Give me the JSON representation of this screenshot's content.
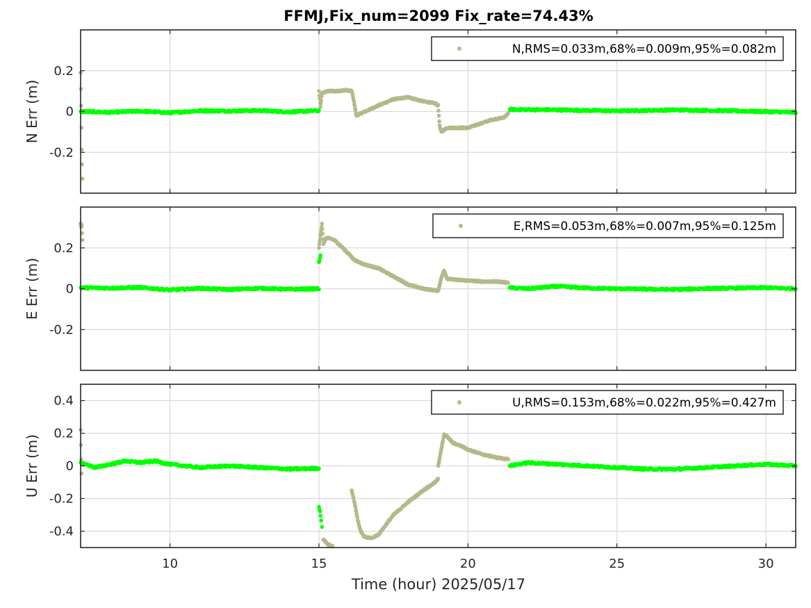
{
  "chart_data": {
    "type": "scatter",
    "title": "FFMJ,Fix_num=2099 Fix_rate=74.43%",
    "xlabel": "Time (hour)  2025/05/17",
    "xlim": [
      7,
      31
    ],
    "xticks": [
      10,
      15,
      20,
      25,
      30
    ],
    "colors": {
      "fixed": "#00ff00",
      "float": "#b5b98a"
    },
    "grid": true,
    "legend_placement": "top-right",
    "panels": [
      {
        "ylabel": "N Err (m)",
        "ylim": [
          -0.4,
          0.4
        ],
        "yticks": [
          -0.2,
          0,
          0.2
        ],
        "ytick_labels": [
          "-0.2",
          "0",
          "0.2"
        ],
        "legend": "N,RMS=0.033m,68%=0.009m,95%=0.082m",
        "fixed_segments": [
          {
            "x": [
              7.0,
              8.0,
              9.0,
              10.0,
              11.0,
              12.0,
              13.0,
              14.0,
              15.0
            ],
            "y": [
              0.0,
              -0.004,
              0.002,
              -0.006,
              0.004,
              0.003,
              0.005,
              -0.002,
              0.005
            ]
          },
          {
            "x": [
              21.4,
              23.0,
              25.0,
              27.0,
              29.0,
              31.0
            ],
            "y": [
              0.01,
              0.008,
              0.003,
              0.008,
              0.003,
              -0.004
            ]
          }
        ],
        "float_segments": [
          {
            "x": [
              7.0,
              7.02,
              7.04,
              7.06
            ],
            "y": [
              0.19,
              0.03,
              -0.19,
              -0.33
            ]
          },
          {
            "x": [
              15.0,
              15.05,
              15.1,
              15.3,
              15.6,
              15.9,
              16.1,
              16.2,
              16.25,
              16.4,
              16.7,
              17.0,
              17.5,
              18.0,
              18.5,
              18.9,
              19.0,
              19.05,
              19.1,
              19.3,
              19.7,
              20.0,
              20.4,
              20.8,
              21.2,
              21.35
            ],
            "y": [
              0.1,
              0.02,
              0.09,
              0.1,
              0.1,
              0.105,
              0.1,
              0.03,
              -0.02,
              -0.01,
              0.01,
              0.03,
              0.06,
              0.07,
              0.05,
              0.04,
              0.03,
              -0.07,
              -0.1,
              -0.08,
              -0.08,
              -0.08,
              -0.06,
              -0.04,
              -0.03,
              -0.01
            ]
          }
        ]
      },
      {
        "ylabel": "E Err (m)",
        "ylim": [
          -0.4,
          0.4
        ],
        "yticks": [
          -0.2,
          0,
          0.2
        ],
        "ytick_labels": [
          "-0.2",
          "0",
          "0.2"
        ],
        "legend": "E,RMS=0.053m,68%=0.007m,95%=0.125m",
        "fixed_segments": [
          {
            "x": [
              7.0,
              8.0,
              9.0,
              10.0,
              11.0,
              12.0,
              13.0,
              14.0,
              15.0
            ],
            "y": [
              0.005,
              0.003,
              0.006,
              -0.006,
              0.002,
              -0.004,
              0.002,
              -0.003,
              0.0
            ]
          },
          {
            "x": [
              15.0,
              15.05
            ],
            "y": [
              0.13,
              0.16
            ]
          },
          {
            "x": [
              21.4,
              22.0,
              23.0,
              24.0,
              25.0,
              26.0,
              27.0,
              28.0,
              29.0,
              30.0,
              31.0
            ],
            "y": [
              0.005,
              0.0,
              0.012,
              0.003,
              0.0,
              -0.002,
              -0.004,
              0.001,
              0.003,
              0.005,
              0.0
            ]
          }
        ],
        "float_segments": [
          {
            "x": [
              7.0,
              7.02,
              7.04,
              7.06
            ],
            "y": [
              0.32,
              0.3,
              0.31,
              0.24
            ]
          },
          {
            "x": [
              15.0,
              15.1,
              15.15,
              15.25,
              15.5,
              15.8,
              16.0,
              16.2,
              16.5,
              17.0,
              17.5,
              18.0,
              18.5,
              19.0,
              19.1,
              19.2,
              19.3,
              19.5,
              20.0,
              20.5,
              21.0,
              21.35
            ],
            "y": [
              0.2,
              0.32,
              0.22,
              0.25,
              0.24,
              0.2,
              0.17,
              0.14,
              0.12,
              0.1,
              0.06,
              0.02,
              0.0,
              -0.01,
              0.05,
              0.09,
              0.05,
              0.045,
              0.04,
              0.035,
              0.035,
              0.03
            ]
          }
        ]
      },
      {
        "ylabel": "U Err (m)",
        "ylim": [
          -0.5,
          0.5
        ],
        "yticks": [
          -0.4,
          -0.2,
          0,
          0.2,
          0.4
        ],
        "ytick_labels": [
          "-0.4",
          "-0.2",
          "0",
          "0.2",
          "0.4"
        ],
        "legend": "U,RMS=0.153m,68%=0.022m,95%=0.427m",
        "fixed_segments": [
          {
            "x": [
              7.0,
              7.5,
              8.0,
              8.5,
              9.0,
              9.5,
              10.0,
              11.0,
              12.0,
              13.0,
              14.0,
              15.0
            ],
            "y": [
              0.02,
              -0.01,
              0.01,
              0.03,
              0.02,
              0.03,
              0.01,
              -0.01,
              0.0,
              -0.01,
              -0.02,
              -0.015
            ]
          },
          {
            "x": [
              15.0,
              15.05,
              15.1
            ],
            "y": [
              -0.25,
              -0.3,
              -0.37
            ]
          },
          {
            "x": [
              21.4,
              22.0,
              23.0,
              24.0,
              25.0,
              26.0,
              27.0,
              28.0,
              29.0,
              30.0,
              31.0
            ],
            "y": [
              0.0,
              0.02,
              0.01,
              0.0,
              -0.01,
              -0.02,
              -0.02,
              -0.01,
              0.0,
              0.01,
              0.0
            ]
          }
        ],
        "float_segments": [
          {
            "x": [
              7.0,
              7.03
            ],
            "y": [
              0.22,
              -0.05
            ]
          },
          {
            "x": [
              15.15,
              15.3,
              15.45
            ],
            "y": [
              -0.45,
              -0.48,
              -0.49
            ]
          },
          {
            "x": [
              16.1,
              16.2,
              16.3,
              16.4,
              16.5,
              16.6,
              16.8,
              17.0,
              17.5,
              18.0,
              18.5,
              18.9,
              19.0
            ],
            "y": [
              -0.15,
              -0.23,
              -0.33,
              -0.4,
              -0.43,
              -0.44,
              -0.44,
              -0.42,
              -0.3,
              -0.22,
              -0.15,
              -0.1,
              -0.08
            ]
          },
          {
            "x": [
              19.0,
              19.1,
              19.2,
              19.3,
              19.5,
              19.8,
              20.0,
              20.5,
              21.0,
              21.35
            ],
            "y": [
              0.0,
              0.1,
              0.19,
              0.18,
              0.14,
              0.12,
              0.1,
              0.07,
              0.05,
              0.04
            ]
          }
        ]
      }
    ]
  }
}
